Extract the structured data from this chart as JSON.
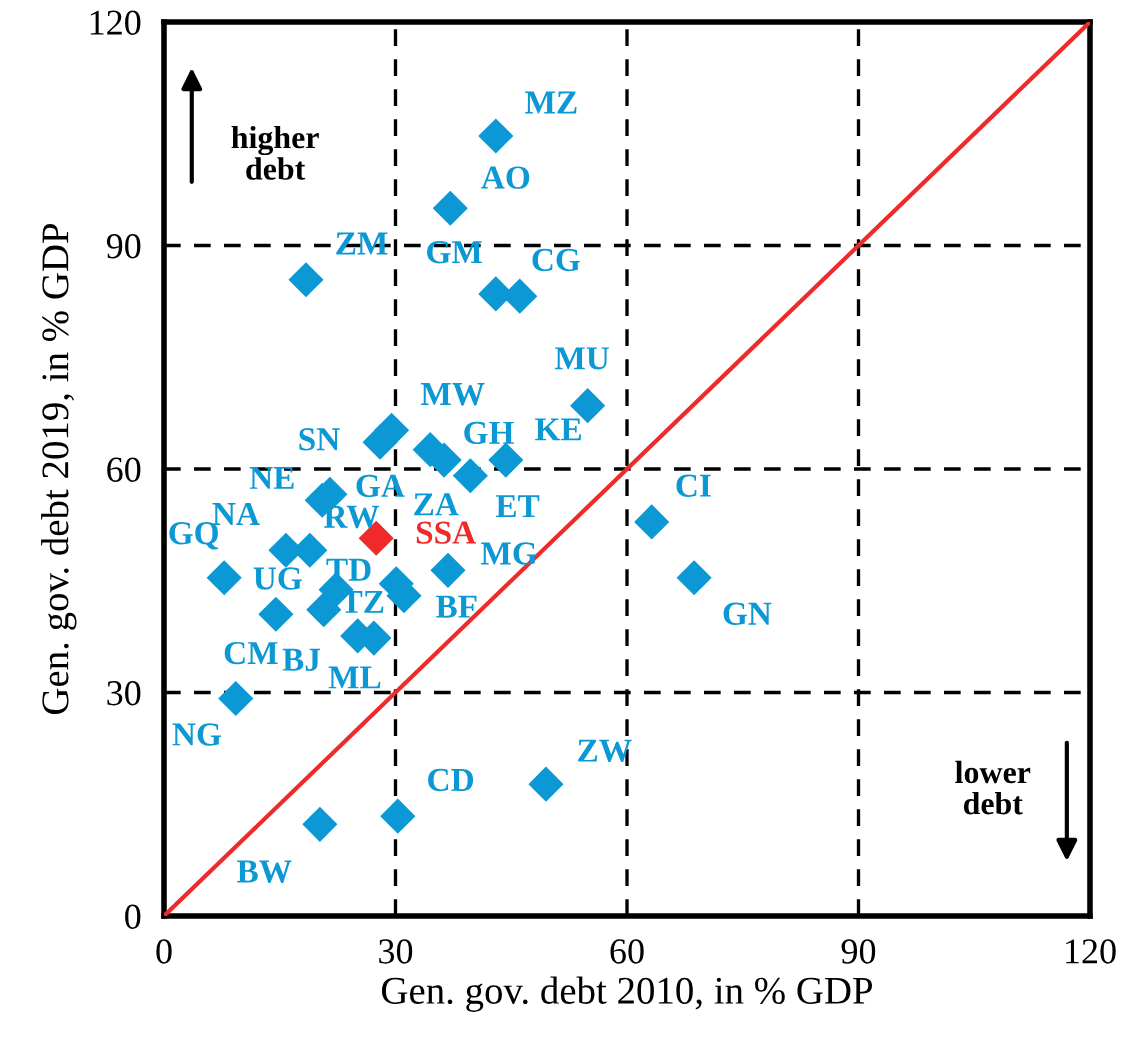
{
  "chart_data": {
    "type": "scatter",
    "xlabel": "Gen. gov. debt 2010, in % GDP",
    "ylabel": "Gen. gov. debt 2019, in % GDP",
    "xlim": [
      0,
      120
    ],
    "ylim": [
      0,
      120
    ],
    "xticks": [
      0,
      30,
      60,
      90,
      120
    ],
    "yticks": [
      0,
      30,
      60,
      90,
      120
    ],
    "grid": true,
    "legend": false,
    "marker": "diamond",
    "series": [
      {
        "color": "#0b98d4",
        "x": [
          43.0,
          37.1,
          18.4,
          43.0,
          46.1,
          54.9,
          29.5,
          28.0,
          34.5,
          36.3,
          39.7,
          44.3,
          20.5,
          21.5,
          15.8,
          18.9,
          7.8,
          36.8,
          30.1,
          31.1,
          22.3,
          20.7,
          27.2,
          25.1,
          14.5,
          9.3,
          20.2,
          30.3,
          49.5,
          63.2,
          68.7
        ],
        "values": [
          104.7,
          95.0,
          85.4,
          83.5,
          83.2,
          68.5,
          65.2,
          63.6,
          62.6,
          61.2,
          59.1,
          61.2,
          55.8,
          56.6,
          49.1,
          49.1,
          45.4,
          46.4,
          44.6,
          43.0,
          43.8,
          41.1,
          37.3,
          37.6,
          40.5,
          29.2,
          12.3,
          13.4,
          17.7,
          52.9,
          45.4
        ]
      },
      {
        "color": "#ee2a2a",
        "x": [
          27.5
        ],
        "values": [
          50.7
        ]
      },
      {
        "type": "line",
        "color": "#ee2a2a",
        "x": [
          0,
          120
        ],
        "values": [
          0,
          120
        ],
        "marker": "none",
        "line_style": "solid"
      }
    ],
    "annotations": [
      {
        "text": "MZ",
        "x": 43.0,
        "y": 104.7
      },
      {
        "text": "AO",
        "x": 37.1,
        "y": 95.0
      },
      {
        "text": "ZM",
        "x": 18.4,
        "y": 85.4
      },
      {
        "text": "GM",
        "x": 43.0,
        "y": 83.5
      },
      {
        "text": "CG",
        "x": 46.1,
        "y": 83.2
      },
      {
        "text": "MU",
        "x": 54.9,
        "y": 68.5
      },
      {
        "text": "MW",
        "x": 29.5,
        "y": 65.2
      },
      {
        "text": "SN",
        "x": 28.0,
        "y": 63.6
      },
      {
        "text": "GH",
        "x": 34.5,
        "y": 62.6
      },
      {
        "text": "ZA",
        "x": 36.3,
        "y": 61.2
      },
      {
        "text": "ET",
        "x": 39.7,
        "y": 59.1
      },
      {
        "text": "KE",
        "x": 44.3,
        "y": 61.2
      },
      {
        "text": "NE",
        "x": 20.5,
        "y": 55.8
      },
      {
        "text": "GA",
        "x": 21.5,
        "y": 56.6
      },
      {
        "text": "NA",
        "x": 15.8,
        "y": 49.1
      },
      {
        "text": "RW",
        "x": 18.9,
        "y": 49.1
      },
      {
        "text": "GQ",
        "x": 7.8,
        "y": 45.4
      },
      {
        "text": "MG",
        "x": 36.8,
        "y": 46.4
      },
      {
        "text": "TD",
        "x": 30.1,
        "y": 44.6
      },
      {
        "text": "BF",
        "x": 31.1,
        "y": 43.0
      },
      {
        "text": "UG",
        "x": 22.3,
        "y": 43.8
      },
      {
        "text": "BJ",
        "x": 20.7,
        "y": 41.1
      },
      {
        "text": "TZ",
        "x": 27.2,
        "y": 37.3
      },
      {
        "text": "ML",
        "x": 25.1,
        "y": 37.6
      },
      {
        "text": "CM",
        "x": 14.5,
        "y": 40.5
      },
      {
        "text": "NG",
        "x": 9.3,
        "y": 29.2
      },
      {
        "text": "BW",
        "x": 20.2,
        "y": 12.3
      },
      {
        "text": "CD",
        "x": 30.3,
        "y": 13.4
      },
      {
        "text": "ZW",
        "x": 49.5,
        "y": 17.7
      },
      {
        "text": "CI",
        "x": 63.2,
        "y": 52.9
      },
      {
        "text": "GN",
        "x": 68.7,
        "y": 45.4
      },
      {
        "text": "SSA",
        "x": 27.5,
        "y": 50.7
      },
      "higher\ndebt",
      "lower\ndebt"
    ]
  }
}
